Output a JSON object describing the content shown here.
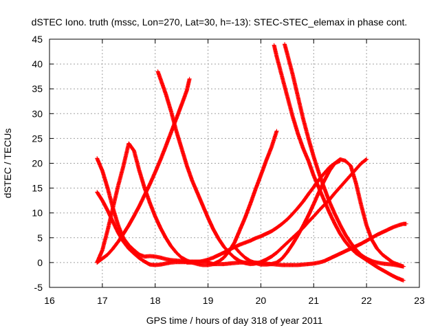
{
  "chart_data": {
    "type": "scatter",
    "title": "dSTEC Iono. truth (mssc, Lon=270, Lat=30, h=-13): STEC-STEC_elemax in phase cont.",
    "xlabel": "GPS time / hours of day 318 of year 2011",
    "ylabel": "dSTEC  / TECUs",
    "xlim": [
      16,
      23
    ],
    "ylim": [
      -5,
      45
    ],
    "x_ticks": [
      16,
      17,
      18,
      19,
      20,
      21,
      22,
      23
    ],
    "y_ticks": [
      -5,
      0,
      5,
      10,
      15,
      20,
      25,
      30,
      35,
      40,
      45
    ],
    "grid": true,
    "marker": "+",
    "color": "#ff0000",
    "series": [
      {
        "x": [
          16.9,
          17.0,
          17.1,
          17.2,
          17.3,
          17.4,
          17.5,
          17.6,
          17.7,
          17.8,
          17.9,
          18.0,
          18.1,
          18.2,
          18.3,
          18.4,
          18.5,
          18.6,
          18.65
        ],
        "y": [
          0.0,
          0.8,
          1.6,
          2.8,
          4.2,
          5.8,
          7.5,
          9.4,
          11.4,
          13.6,
          15.8,
          18.2,
          20.7,
          23.4,
          26.2,
          29.0,
          31.8,
          34.7,
          37.0
        ]
      },
      {
        "x": [
          16.9,
          17.0,
          17.1,
          17.2,
          17.3,
          17.4,
          17.5,
          17.6,
          17.7,
          17.8,
          17.9,
          18.0,
          18.1,
          18.2,
          18.3,
          18.4,
          18.5,
          18.6,
          18.7,
          18.8,
          18.9,
          19.0,
          19.1,
          19.2,
          19.3,
          19.4,
          19.5,
          19.6,
          19.7,
          19.8,
          19.9,
          20.0,
          20.1,
          20.2,
          20.3
        ],
        "y": [
          0.0,
          2.5,
          6.5,
          11.0,
          15.5,
          19.5,
          24.0,
          22.5,
          18.5,
          15.0,
          12.0,
          9.3,
          7.0,
          5.0,
          3.3,
          2.0,
          1.0,
          0.4,
          0.0,
          -0.3,
          -0.5,
          -0.5,
          -0.3,
          0.2,
          1.0,
          2.3,
          4.0,
          6.5,
          9.0,
          11.8,
          14.8,
          17.6,
          20.5,
          23.2,
          26.5
        ]
      },
      {
        "x": [
          16.9,
          17.0,
          17.1,
          17.2,
          17.3,
          17.4,
          17.5,
          17.6,
          17.7,
          17.8,
          17.9,
          18.0,
          18.1,
          18.2,
          18.3,
          18.4,
          18.5,
          18.6,
          18.7,
          18.8,
          18.9,
          19.0
        ],
        "y": [
          21.0,
          18.5,
          15.0,
          11.0,
          7.5,
          4.9,
          3.5,
          2.5,
          1.6,
          1.2,
          1.3,
          1.2,
          1.0,
          0.7,
          0.5,
          0.4,
          0.3,
          0.2,
          0.2,
          0.2,
          0.2,
          0.2
        ]
      },
      {
        "x": [
          16.9,
          17.0,
          17.1,
          17.2,
          17.3,
          17.4,
          17.5,
          17.6,
          17.7,
          17.8,
          17.9,
          18.0,
          18.1,
          18.2,
          18.3,
          18.4,
          18.5,
          18.6,
          18.7,
          18.8
        ],
        "y": [
          14.2,
          12.5,
          10.5,
          8.2,
          6.0,
          4.2,
          2.8,
          1.8,
          0.9,
          0.2,
          -0.4,
          -0.5,
          -0.4,
          -0.2,
          0.0,
          0.1,
          0.1,
          0.1,
          0.1,
          0.1
        ]
      },
      {
        "x": [
          18.05,
          18.1,
          18.2,
          18.3,
          18.4,
          18.5,
          18.6,
          18.7,
          18.8,
          18.9,
          19.0,
          19.1,
          19.2,
          19.3,
          19.4,
          19.5,
          19.6,
          19.7,
          19.8,
          19.9,
          20.0,
          20.1,
          20.2,
          20.3,
          20.4,
          20.5,
          20.6,
          20.7,
          20.8,
          20.9,
          21.0,
          21.1,
          21.2,
          21.3,
          21.4,
          21.5,
          21.6,
          21.7,
          21.8,
          21.9,
          22.0
        ],
        "y": [
          38.5,
          37.0,
          34.0,
          30.5,
          26.5,
          23.0,
          19.5,
          16.5,
          14.0,
          11.5,
          9.0,
          6.7,
          4.8,
          3.2,
          2.0,
          1.0,
          0.3,
          -0.1,
          -0.3,
          -0.2,
          0.1,
          0.6,
          1.2,
          2.0,
          3.0,
          4.0,
          5.0,
          6.0,
          7.0,
          8.2,
          9.3,
          10.5,
          11.6,
          12.7,
          14.0,
          15.2,
          16.4,
          17.6,
          18.8,
          20.0,
          20.8
        ]
      },
      {
        "x": [
          18.6,
          18.7,
          18.8,
          18.9,
          19.0,
          19.1,
          19.2,
          19.3,
          19.4,
          19.5,
          19.6,
          19.7,
          19.8,
          19.9,
          20.0,
          20.1,
          20.2,
          20.3,
          20.4,
          20.5,
          20.6,
          20.7,
          20.8,
          20.9,
          21.0,
          21.1,
          21.2,
          21.3,
          21.4,
          21.5
        ],
        "y": [
          0.0,
          0.0,
          0.1,
          0.3,
          0.6,
          1.0,
          1.5,
          2.0,
          2.6,
          3.1,
          3.6,
          4.0,
          4.4,
          4.9,
          5.3,
          5.8,
          6.3,
          7.0,
          7.8,
          8.7,
          9.8,
          11.0,
          12.3,
          13.8,
          15.2,
          16.7,
          18.0,
          19.2,
          20.0,
          20.5
        ]
      },
      {
        "x": [
          20.25,
          20.3,
          20.4,
          20.5,
          20.6,
          20.7,
          20.8,
          20.9,
          21.0,
          21.1,
          21.2,
          21.3,
          21.4,
          21.5,
          21.6,
          21.7,
          21.8,
          21.9,
          22.0,
          22.1,
          22.2,
          22.3,
          22.4,
          22.5,
          22.6,
          22.7
        ],
        "y": [
          43.8,
          41.5,
          37.5,
          33.5,
          29.5,
          26.0,
          23.0,
          20.5,
          17.5,
          15.0,
          12.5,
          10.0,
          7.8,
          5.8,
          4.2,
          2.9,
          1.9,
          1.2,
          0.5,
          -0.2,
          -0.9,
          -1.5,
          -2.1,
          -2.7,
          -3.2,
          -3.6
        ]
      },
      {
        "x": [
          19.5,
          19.6,
          19.7,
          19.8,
          19.9,
          20.0,
          20.1,
          20.2,
          20.3,
          20.4,
          20.5,
          20.6,
          20.7,
          20.8,
          20.9,
          21.0,
          21.1,
          21.2,
          21.3,
          21.4,
          21.5,
          21.6,
          21.7,
          21.8,
          21.9,
          22.0,
          22.1,
          22.2,
          22.3,
          22.4,
          22.5,
          22.6,
          22.7
        ],
        "y": [
          3.2,
          2.0,
          1.0,
          0.3,
          -0.1,
          -0.4,
          -0.4,
          -0.3,
          0.0,
          0.8,
          2.1,
          3.7,
          5.5,
          7.4,
          9.5,
          11.8,
          14.2,
          16.5,
          18.5,
          20.0,
          20.8,
          20.5,
          19.5,
          16.0,
          11.5,
          7.5,
          4.6,
          2.8,
          1.6,
          0.8,
          0.0,
          -0.4,
          -0.8
        ]
      },
      {
        "x": [
          20.45,
          20.5,
          20.6,
          20.7,
          20.8,
          20.9,
          21.0,
          21.1,
          21.2,
          21.3,
          21.4,
          21.5,
          21.6,
          21.7,
          21.8,
          21.9,
          22.0,
          22.1,
          22.2,
          22.3,
          22.4,
          22.5,
          22.6,
          22.7
        ],
        "y": [
          44.0,
          42.0,
          38.0,
          33.5,
          29.0,
          25.0,
          21.3,
          18.0,
          15.0,
          12.2,
          9.8,
          7.6,
          5.6,
          4.0,
          2.6,
          1.5,
          0.8,
          0.3,
          0.0,
          -0.2,
          -0.3,
          -0.4,
          -0.6,
          -0.8
        ]
      },
      {
        "x": [
          19.0,
          19.1,
          19.2,
          19.3,
          19.4,
          19.5,
          19.6,
          19.7,
          19.8,
          19.9,
          20.0,
          20.1,
          20.2,
          20.3,
          20.4,
          20.5,
          20.6,
          20.7,
          20.8,
          20.9,
          21.0,
          21.1,
          21.2,
          21.3,
          21.4,
          21.5,
          21.6,
          21.7,
          21.8,
          21.9,
          22.0,
          22.1,
          22.2,
          22.3,
          22.4,
          22.5,
          22.6,
          22.7,
          22.75
        ],
        "y": [
          0.0,
          -0.3,
          -0.3,
          -0.3,
          -0.2,
          -0.1,
          0.0,
          0.0,
          0.0,
          0.0,
          -0.1,
          -0.2,
          -0.3,
          -0.4,
          -0.5,
          -0.5,
          -0.5,
          -0.5,
          -0.4,
          -0.3,
          -0.2,
          0.0,
          0.3,
          0.8,
          1.3,
          1.8,
          2.3,
          2.8,
          3.3,
          3.8,
          4.4,
          5.0,
          5.6,
          6.1,
          6.6,
          7.1,
          7.5,
          7.8,
          7.8
        ]
      }
    ]
  }
}
